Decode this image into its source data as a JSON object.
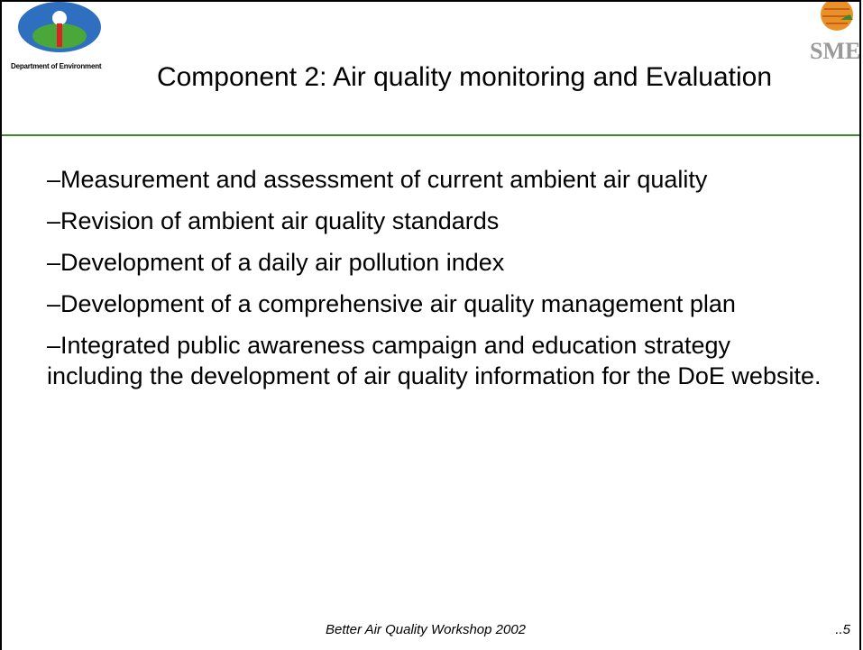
{
  "header": {
    "title": "Component 2: Air quality monitoring and Evaluation",
    "left_logo_text": "Department of Environment",
    "right_logo_text": "SMEC"
  },
  "bullets": [
    "–Measurement and assessment of current ambient air quality",
    "–Revision of ambient air quality standards",
    "–Development of a daily air pollution index",
    "–Development of a comprehensive air quality management plan",
    "–Integrated public awareness campaign and education strategy including the development of air quality information for the DoE website."
  ],
  "footer": {
    "text": "Better Air Quality Workshop 2002",
    "page": "..5"
  }
}
